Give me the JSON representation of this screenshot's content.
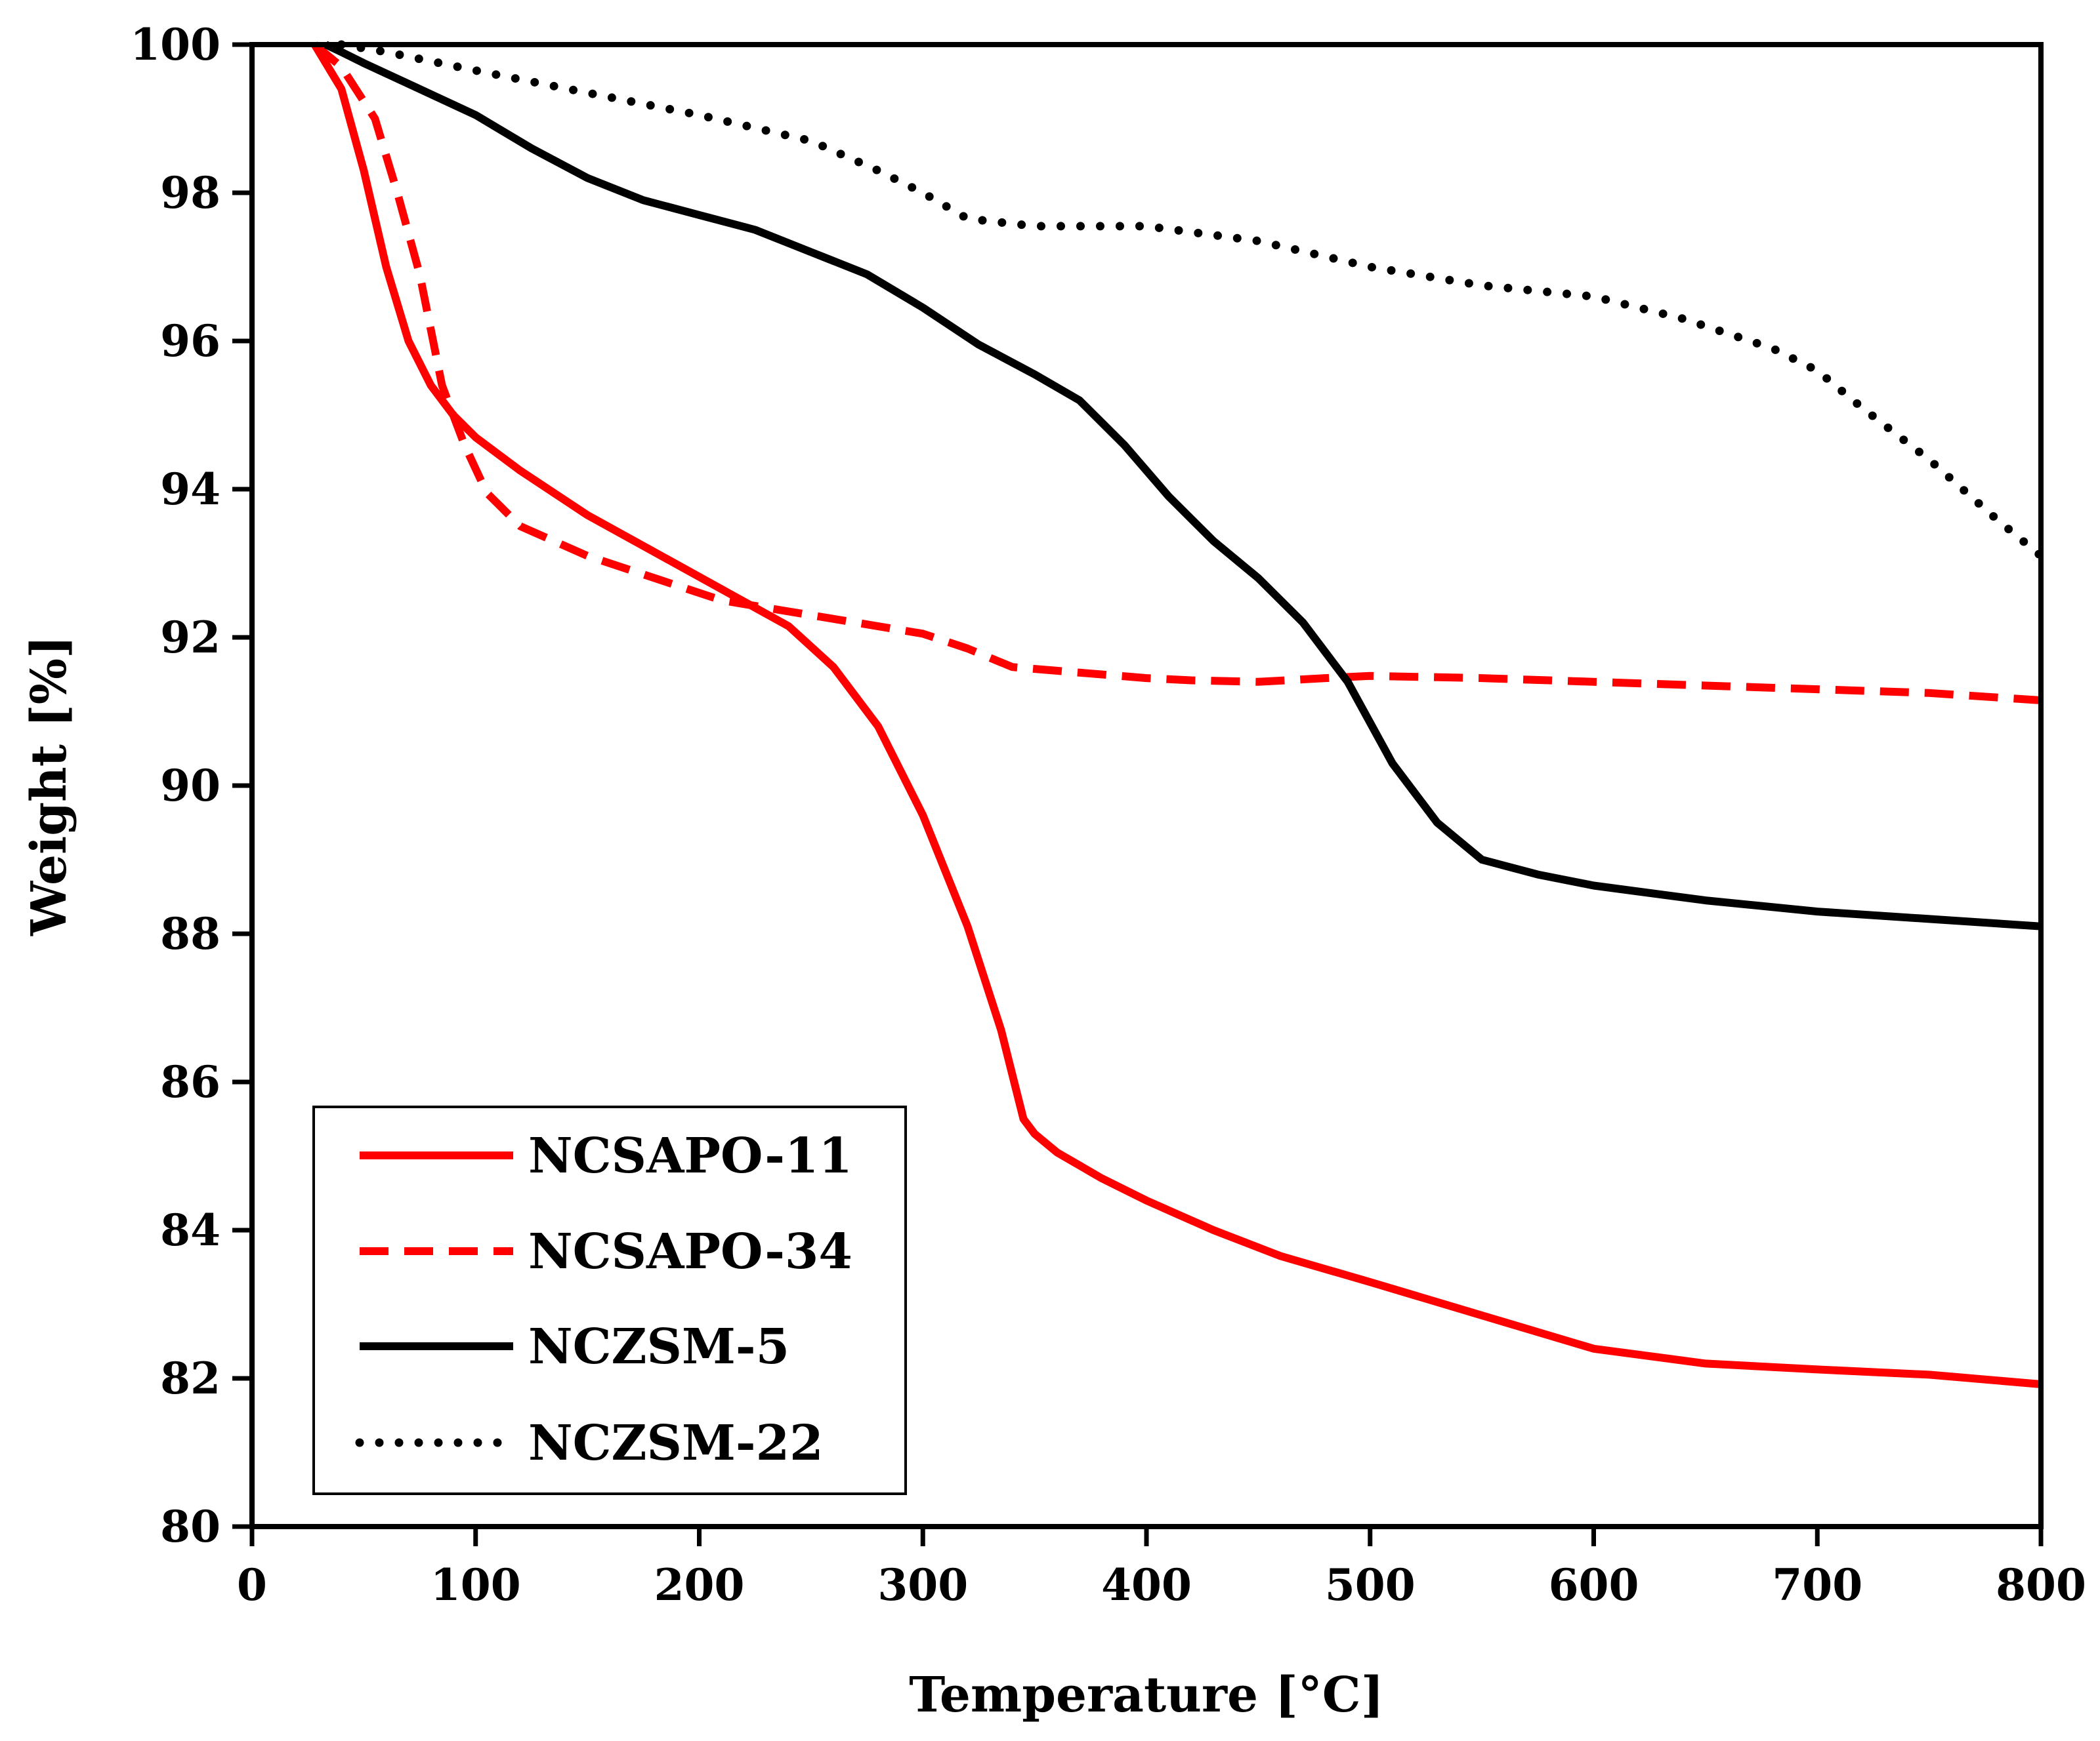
{
  "chart_data": {
    "type": "line",
    "title": "",
    "xlabel": "Temperature [°C]",
    "ylabel": "Weight [%]",
    "xlim": [
      0,
      800
    ],
    "ylim": [
      80,
      100
    ],
    "xticks": [
      0,
      100,
      200,
      300,
      400,
      500,
      600,
      700,
      800
    ],
    "yticks": [
      80,
      82,
      84,
      86,
      88,
      90,
      92,
      94,
      96,
      98,
      100
    ],
    "grid": false,
    "legend_position": "bottom-left",
    "series": [
      {
        "name": "NCSAPO-11",
        "color": "#ff0000",
        "style": "solid",
        "x": [
          28,
          40,
          50,
          60,
          70,
          80,
          90,
          100,
          120,
          150,
          180,
          210,
          240,
          260,
          280,
          300,
          320,
          335,
          345,
          350,
          360,
          380,
          400,
          430,
          460,
          500,
          550,
          600,
          650,
          700,
          750,
          800
        ],
        "y": [
          100,
          99.4,
          98.3,
          97,
          96,
          95.4,
          95,
          94.7,
          94.25,
          93.65,
          93.15,
          92.65,
          92.15,
          91.6,
          90.8,
          89.6,
          88.1,
          86.7,
          85.5,
          85.3,
          85.05,
          84.7,
          84.4,
          84.0,
          83.65,
          83.3,
          82.85,
          82.4,
          82.2,
          82.12,
          82.05,
          81.92
        ]
      },
      {
        "name": "NCSAPO-34",
        "color": "#ff0000",
        "style": "dashed",
        "x": [
          28,
          40,
          55,
          65,
          75,
          85,
          95,
          105,
          120,
          150,
          180,
          210,
          240,
          270,
          300,
          320,
          340,
          360,
          380,
          400,
          420,
          450,
          480,
          500,
          550,
          600,
          650,
          700,
          750,
          800
        ],
        "y": [
          100,
          99.7,
          99,
          98,
          96.9,
          95.4,
          94.6,
          93.95,
          93.5,
          93.1,
          92.8,
          92.5,
          92.35,
          92.2,
          92.05,
          91.85,
          91.6,
          91.55,
          91.5,
          91.45,
          91.42,
          91.4,
          91.45,
          91.48,
          91.45,
          91.4,
          91.35,
          91.3,
          91.25,
          91.15
        ]
      },
      {
        "name": "NCZSM-5",
        "color": "#000000",
        "style": "solid",
        "x": [
          33,
          40,
          50,
          75,
          100,
          125,
          150,
          175,
          200,
          225,
          250,
          275,
          300,
          325,
          350,
          370,
          390,
          410,
          430,
          450,
          470,
          490,
          510,
          530,
          550,
          575,
          600,
          650,
          700,
          750,
          800
        ],
        "y": [
          100,
          99.9,
          99.75,
          99.4,
          99.05,
          98.6,
          98.2,
          97.9,
          97.7,
          97.5,
          97.2,
          96.9,
          96.45,
          95.95,
          95.55,
          95.2,
          94.6,
          93.9,
          93.3,
          92.8,
          92.2,
          91.4,
          90.3,
          89.5,
          89.0,
          88.8,
          88.65,
          88.45,
          88.3,
          88.2,
          88.1
        ]
      },
      {
        "name": "NCZSM-22",
        "color": "#000000",
        "style": "dotted",
        "x": [
          40,
          60,
          100,
          150,
          200,
          250,
          280,
          300,
          320,
          350,
          400,
          450,
          500,
          550,
          600,
          640,
          680,
          700,
          720,
          750,
          780,
          800
        ],
        "y": [
          100,
          99.9,
          99.65,
          99.35,
          99.05,
          98.7,
          98.3,
          98.0,
          97.65,
          97.55,
          97.55,
          97.35,
          97.0,
          96.75,
          96.6,
          96.3,
          95.9,
          95.6,
          95.1,
          94.4,
          93.6,
          93.1
        ]
      }
    ]
  }
}
